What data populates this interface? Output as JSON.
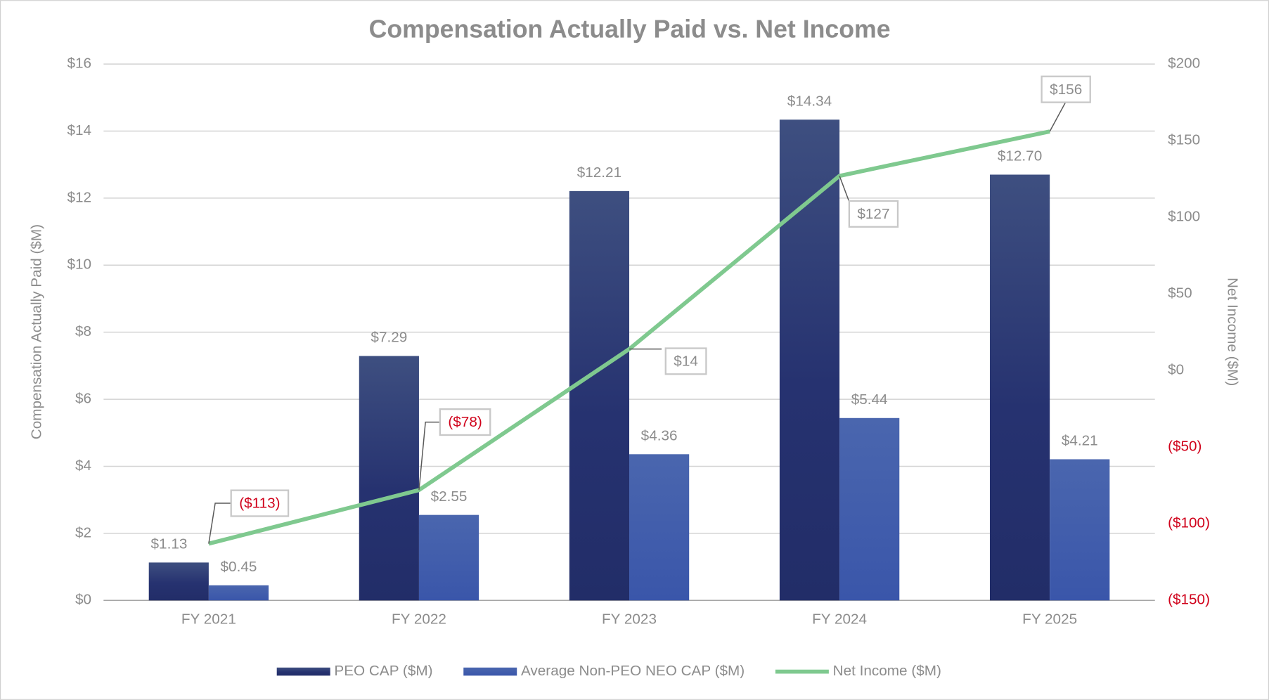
{
  "chart_data": {
    "type": "bar_line_combo",
    "title": "Compensation Actually Paid vs. Net Income",
    "y_label": "Compensation Actually Paid ($M)",
    "y2_label": "Net Income ($M)",
    "categories": [
      "FY 2021",
      "FY 2022",
      "FY 2023",
      "FY 2024",
      "FY 2025"
    ],
    "series": [
      {
        "name": "PEO CAP ($M)",
        "type": "bar",
        "color": "#2b3870",
        "values": [
          1.13,
          7.29,
          12.21,
          14.34,
          12.7
        ],
        "value_labels": [
          "$1.13",
          "$7.29",
          "$12.21",
          "$14.34",
          "$12.70"
        ]
      },
      {
        "name": "Average Non-PEO NEO CAP ($M)",
        "type": "bar",
        "color": "#4460ac",
        "values": [
          0.45,
          2.55,
          4.36,
          5.44,
          4.21
        ],
        "value_labels": [
          "$0.45",
          "$2.55",
          "$4.36",
          "$5.44",
          "$4.21"
        ]
      },
      {
        "name": "Net Income ($M)",
        "type": "line",
        "axis": "y2",
        "color": "#7fc98f",
        "values": [
          -113,
          -78,
          14,
          127,
          156
        ],
        "value_labels": [
          "($113)",
          "($78)",
          "$14",
          "$127",
          "$156"
        ]
      }
    ],
    "ylim": [
      0,
      16
    ],
    "yticks": [
      {
        "value": 0,
        "label": "$0"
      },
      {
        "value": 2,
        "label": "$2"
      },
      {
        "value": 4,
        "label": "$4"
      },
      {
        "value": 6,
        "label": "$6"
      },
      {
        "value": 8,
        "label": "$8"
      },
      {
        "value": 10,
        "label": "$10"
      },
      {
        "value": 12,
        "label": "$12"
      },
      {
        "value": 14,
        "label": "$14"
      },
      {
        "value": 16,
        "label": "$16"
      }
    ],
    "y2lim": [
      -150,
      200
    ],
    "y2ticks": [
      {
        "value": -150,
        "label": "($150)"
      },
      {
        "value": -100,
        "label": "($100)"
      },
      {
        "value": -50,
        "label": "($50)"
      },
      {
        "value": 0,
        "label": "$0"
      },
      {
        "value": 50,
        "label": "$50"
      },
      {
        "value": 100,
        "label": "$100"
      },
      {
        "value": 150,
        "label": "$150"
      },
      {
        "value": 200,
        "label": "$200"
      }
    ],
    "negative_color": "#d0021b",
    "grid": true,
    "legend": "bottom"
  }
}
